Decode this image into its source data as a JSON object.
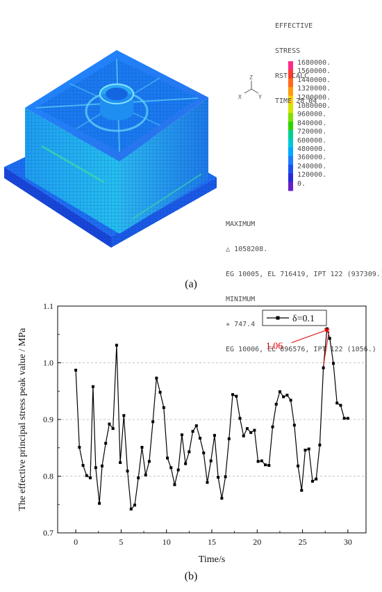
{
  "panel_a": {
    "header_lines": [
      "EFFECTIVE",
      "STRESS",
      "RST CALC",
      "TIME 28.04"
    ],
    "legend_values": [
      "1680000.",
      "1560000.",
      "1440000.",
      "1320000.",
      "1200000.",
      "1080000.",
      "960000.",
      "840000.",
      "720000.",
      "600000.",
      "480000.",
      "360000.",
      "240000.",
      "120000.",
      "0."
    ],
    "legend_colors": [
      "#ff2a8a",
      "#ff3b2e",
      "#ff6a1a",
      "#ff9a10",
      "#ffd000",
      "#d4e600",
      "#7fe000",
      "#2fd400",
      "#00d090",
      "#00c8d8",
      "#00a8ff",
      "#1e7bff",
      "#1d4ff0",
      "#2a2ad8",
      "#6a1fc8"
    ],
    "triad": {
      "x": "X",
      "y": "Y",
      "z": "Z"
    },
    "maximum_title": "MAXIMUM",
    "maximum_value": "1058208.",
    "maximum_location": "EG 10005, EL 716419, IPT 122 (937309.)",
    "minimum_title": "MINIMUM",
    "minimum_value": "747.4",
    "minimum_location": "EG 10006, EL 896576, IPT 122 (1056.)",
    "max_symbol": "△",
    "min_symbol": "✳",
    "caption": "(a)"
  },
  "panel_b": {
    "caption": "(b)"
  },
  "chart_data": {
    "type": "line",
    "title": "",
    "xlabel": "Time/s",
    "ylabel": "The effective principal stress peak value / MPa",
    "xlim": [
      -2,
      32
    ],
    "ylim": [
      0.7,
      1.1
    ],
    "x_ticks": [
      0,
      5,
      10,
      15,
      20,
      25,
      30
    ],
    "y_ticks": [
      0.7,
      0.8,
      0.9,
      1.0,
      1.1
    ],
    "y_tick_labels": [
      "0.7",
      "0.8",
      "0.9",
      "1.0",
      "1.1"
    ],
    "grid": "horizontal dashed",
    "legend_position": "top-right",
    "series": [
      {
        "name": "δ=0.1",
        "color": "#000000",
        "marker": "square",
        "x": [
          0.0,
          0.4,
          0.8,
          1.2,
          1.6,
          1.9,
          2.2,
          2.6,
          2.9,
          3.3,
          3.7,
          4.1,
          4.5,
          4.9,
          5.3,
          5.7,
          6.1,
          6.5,
          6.9,
          7.3,
          7.7,
          8.1,
          8.5,
          8.9,
          9.3,
          9.7,
          10.1,
          10.5,
          10.9,
          11.3,
          11.7,
          12.1,
          12.5,
          12.9,
          13.3,
          13.7,
          14.1,
          14.5,
          14.9,
          15.3,
          15.7,
          16.1,
          16.5,
          16.9,
          17.3,
          17.7,
          18.1,
          18.5,
          18.9,
          19.3,
          19.7,
          20.1,
          20.5,
          20.9,
          21.3,
          21.7,
          22.1,
          22.5,
          22.9,
          23.3,
          23.7,
          24.1,
          24.5,
          24.9,
          25.3,
          25.7,
          26.1,
          26.5,
          26.9,
          27.3,
          27.7,
          28.0,
          28.4,
          28.8,
          29.2,
          29.6,
          30.0
        ],
        "y": [
          0.987,
          0.851,
          0.819,
          0.801,
          0.797,
          0.958,
          0.815,
          0.752,
          0.818,
          0.858,
          0.892,
          0.884,
          1.031,
          0.824,
          0.907,
          0.809,
          0.742,
          0.749,
          0.797,
          0.851,
          0.802,
          0.826,
          0.896,
          0.973,
          0.948,
          0.921,
          0.832,
          0.815,
          0.785,
          0.811,
          0.873,
          0.822,
          0.843,
          0.879,
          0.889,
          0.867,
          0.841,
          0.789,
          0.827,
          0.872,
          0.798,
          0.761,
          0.799,
          0.866,
          0.944,
          0.941,
          0.902,
          0.871,
          0.884,
          0.877,
          0.881,
          0.826,
          0.827,
          0.82,
          0.819,
          0.887,
          0.927,
          0.949,
          0.94,
          0.943,
          0.934,
          0.89,
          0.818,
          0.775,
          0.846,
          0.848,
          0.791,
          0.795,
          0.855,
          0.991,
          1.06,
          1.043,
          0.999,
          0.929,
          0.925,
          0.902,
          0.902
        ]
      }
    ],
    "annotation": {
      "text": "1.06",
      "x": 28.0,
      "y": 1.06,
      "color": "#e00000"
    }
  }
}
